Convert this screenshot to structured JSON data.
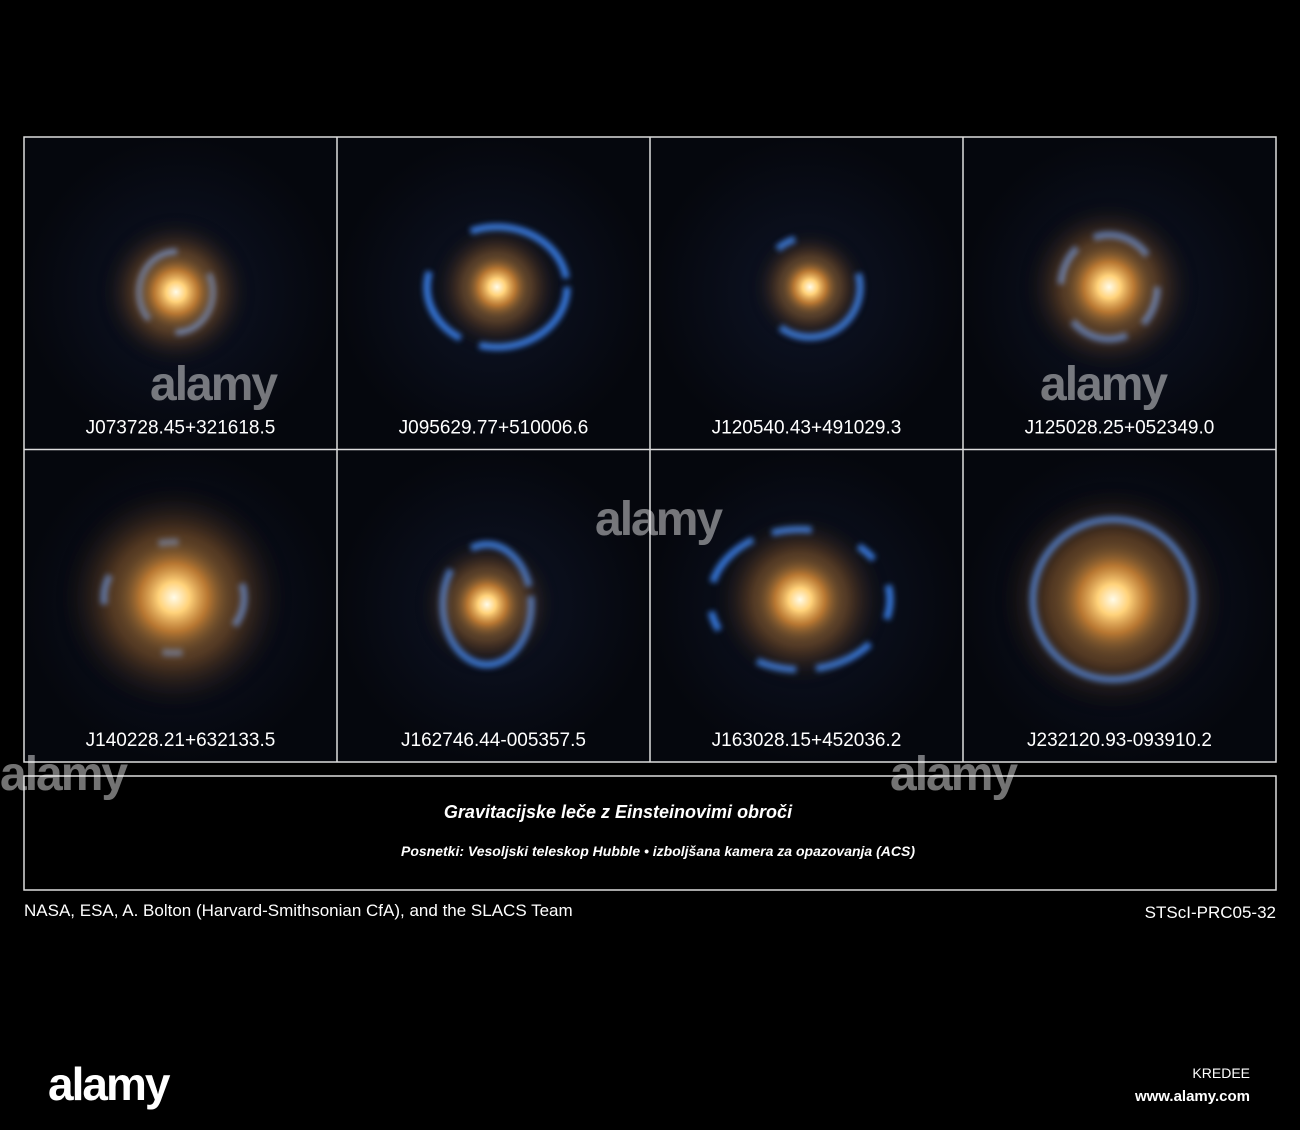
{
  "panels": [
    {
      "label": "J073728.45+321618.5"
    },
    {
      "label": "J095629.77+510006.6"
    },
    {
      "label": "J120540.43+491029.3"
    },
    {
      "label": "J125028.25+052349.0"
    },
    {
      "label": "J140228.21+632133.5"
    },
    {
      "label": "J162746.44-005357.5"
    },
    {
      "label": "J163028.15+452036.2"
    },
    {
      "label": "J232120.93-093910.2"
    }
  ],
  "caption": {
    "title": "Gravitacijske leče z Einsteinovimi obroči",
    "subtitle": "Posnetki:  Vesoljski teleskop Hubble  •  izboljšana kamera za opazovanja (ACS)"
  },
  "credits": {
    "left": "NASA, ESA, A. Bolton (Harvard-Smithsonian CfA), and the SLACS Team",
    "right": "STScI-PRC05-32"
  },
  "watermark": {
    "brand": "alamy",
    "id": "KREDEE",
    "url": "www.alamy.com"
  }
}
